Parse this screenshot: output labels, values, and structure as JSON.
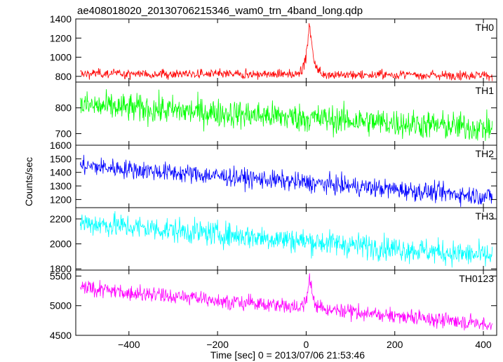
{
  "chart_data": {
    "type": "line",
    "title": "ae408018020_20130706215346_wam0_trn_4band_long.qdp",
    "xlabel": "Time [sec] 0 = 2013/07/06 21:53:46",
    "ylabel": "Counts/sec",
    "xlim": [
      -520,
      430
    ],
    "x_ticks": [
      -400,
      -200,
      0,
      200,
      400
    ],
    "x_range_data": [
      -510,
      420
    ],
    "panels": [
      {
        "name": "TH0",
        "color": "#ff0000",
        "ylim": [
          740,
          1400
        ],
        "y_ticks": [
          800,
          1000,
          1200,
          1400
        ],
        "trend_start": 830,
        "trend_end": 810,
        "noise": 25,
        "peak": {
          "x": 8,
          "amp": 570,
          "width": 7
        }
      },
      {
        "name": "TH1",
        "color": "#00ff00",
        "ylim": [
          655,
          900
        ],
        "y_ticks": [
          700,
          800
        ],
        "trend_start": 810,
        "trend_end": 720,
        "noise": 28,
        "peak": null
      },
      {
        "name": "TH2",
        "color": "#0000ff",
        "ylim": [
          1140,
          1600
        ],
        "y_ticks": [
          1200,
          1300,
          1400,
          1500,
          1600
        ],
        "trend_start": 1450,
        "trend_end": 1220,
        "noise": 35,
        "peak": null
      },
      {
        "name": "TH3",
        "color": "#00ffff",
        "ylim": [
          1790,
          2290
        ],
        "y_ticks": [
          1800,
          2000,
          2200
        ],
        "trend_start": 2170,
        "trend_end": 1900,
        "noise": 50,
        "peak": null
      },
      {
        "name": "TH0123",
        "color": "#ff00ff",
        "ylim": [
          4500,
          5600
        ],
        "y_ticks": [
          4500,
          5000,
          5500
        ],
        "trend_start": 5300,
        "trend_end": 4680,
        "noise": 65,
        "peak": {
          "x": 8,
          "amp": 520,
          "width": 7
        }
      }
    ],
    "grid": false,
    "legend": "none"
  }
}
